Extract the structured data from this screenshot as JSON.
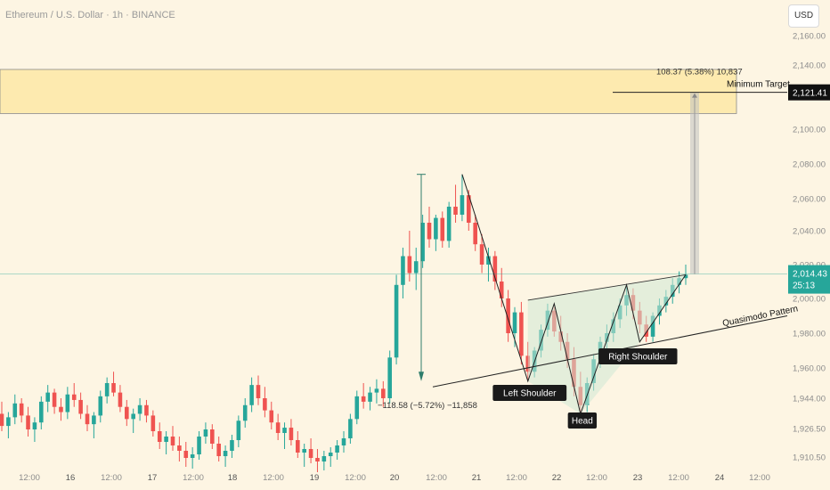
{
  "title": "Ethereum / U.S. Dollar · 1h · BINANCE",
  "currency_button": "USD",
  "colors": {
    "background": "#fdf5e3",
    "bull": "#26a69a",
    "bear": "#ef5350",
    "target_zone": "#fde8a6",
    "pattern_fill": "#cfe8d5",
    "measure": "#bfbfbf",
    "price_tag": "#26a69a"
  },
  "chart_data": {
    "type": "candlestick",
    "symbol": "ETH/USD",
    "interval": "1h",
    "exchange": "BINANCE",
    "y_ticks": [
      2160,
      2140,
      2120,
      2100,
      2080,
      2060,
      2040,
      2020,
      2000,
      1980,
      1960,
      1944,
      1926.5,
      1910.5
    ],
    "y_tick_labels": [
      "2,160.00",
      "2,140.00",
      "2,120.00",
      "2,100.00",
      "2,080.00",
      "2,060.00",
      "2,040.00",
      "2,020.00",
      "2,000.00",
      "1,980.00",
      "1,960.00",
      "1,944.00",
      "1,926.50",
      "1,910.50"
    ],
    "x_tick_labels": [
      "12:00",
      "16",
      "12:00",
      "17",
      "12:00",
      "18",
      "12:00",
      "19",
      "12:00",
      "20",
      "12:00",
      "21",
      "12:00",
      "22",
      "12:00",
      "23",
      "12:00",
      "24",
      "12:00"
    ],
    "x_day_labels": [
      "16",
      "17",
      "18",
      "19",
      "20",
      "21",
      "22",
      "23",
      "24"
    ],
    "current_price": 2014.43,
    "current_price_label": "2,014.43",
    "countdown": "25:13",
    "target_price": 2121.41,
    "target_price_label": "2,121.41",
    "target_zone": [
      2109,
      2137
    ],
    "target_text": "Minimum Target",
    "target_measure_text": "108.37 (5.38%) 10,837",
    "drop_measure_text": "−118.58 (−5.72%) −11,858",
    "pattern_name": "Quasimodo Pattern",
    "pattern_points": [
      "Left Shoulder",
      "Head",
      "Right Shoulder"
    ],
    "swing_points": [
      {
        "label": "",
        "price": 2074
      },
      {
        "label": "Left Shoulder",
        "price": 1953
      },
      {
        "label": "",
        "price": 1997
      },
      {
        "label": "Head",
        "price": 1935
      },
      {
        "label": "",
        "price": 2008
      },
      {
        "label": "Right Shoulder",
        "price": 1975
      },
      {
        "label": "",
        "price": 2014
      }
    ],
    "candles_ohlc": [
      [
        1935,
        1942,
        1925,
        1928
      ],
      [
        1928,
        1936,
        1921,
        1933
      ],
      [
        1933,
        1946,
        1929,
        1941
      ],
      [
        1941,
        1944,
        1930,
        1934
      ],
      [
        1934,
        1939,
        1922,
        1926
      ],
      [
        1926,
        1933,
        1919,
        1930
      ],
      [
        1930,
        1945,
        1926,
        1942
      ],
      [
        1942,
        1951,
        1936,
        1947
      ],
      [
        1947,
        1949,
        1935,
        1939
      ],
      [
        1939,
        1944,
        1931,
        1936
      ],
      [
        1936,
        1950,
        1932,
        1946
      ],
      [
        1946,
        1952,
        1939,
        1943
      ],
      [
        1943,
        1947,
        1932,
        1935
      ],
      [
        1935,
        1940,
        1925,
        1929
      ],
      [
        1929,
        1936,
        1921,
        1934
      ],
      [
        1934,
        1948,
        1930,
        1945
      ],
      [
        1945,
        1955,
        1941,
        1952
      ],
      [
        1952,
        1958,
        1945,
        1947
      ],
      [
        1947,
        1951,
        1936,
        1939
      ],
      [
        1939,
        1943,
        1928,
        1932
      ],
      [
        1932,
        1938,
        1924,
        1935
      ],
      [
        1935,
        1944,
        1931,
        1940
      ],
      [
        1940,
        1943,
        1930,
        1934
      ],
      [
        1934,
        1937,
        1922,
        1925
      ],
      [
        1925,
        1930,
        1915,
        1919
      ],
      [
        1919,
        1925,
        1912,
        1922
      ],
      [
        1922,
        1928,
        1914,
        1917
      ],
      [
        1917,
        1922,
        1908,
        1914
      ],
      [
        1914,
        1919,
        1905,
        1910
      ],
      [
        1910,
        1916,
        1904,
        1912
      ],
      [
        1912,
        1925,
        1909,
        1922
      ],
      [
        1922,
        1930,
        1918,
        1926
      ],
      [
        1926,
        1929,
        1915,
        1918
      ],
      [
        1918,
        1922,
        1908,
        1911
      ],
      [
        1911,
        1917,
        1905,
        1914
      ],
      [
        1914,
        1923,
        1910,
        1920
      ],
      [
        1920,
        1934,
        1916,
        1931
      ],
      [
        1931,
        1944,
        1927,
        1940
      ],
      [
        1940,
        1955,
        1936,
        1951
      ],
      [
        1951,
        1956,
        1940,
        1944
      ],
      [
        1944,
        1950,
        1933,
        1937
      ],
      [
        1937,
        1942,
        1926,
        1930
      ],
      [
        1930,
        1935,
        1920,
        1924
      ],
      [
        1924,
        1930,
        1915,
        1927
      ],
      [
        1927,
        1932,
        1917,
        1920
      ],
      [
        1920,
        1925,
        1910,
        1913
      ],
      [
        1913,
        1918,
        1905,
        1915
      ],
      [
        1915,
        1921,
        1907,
        1910
      ],
      [
        1910,
        1915,
        1902,
        1908
      ],
      [
        1908,
        1914,
        1903,
        1911
      ],
      [
        1911,
        1916,
        1905,
        1913
      ],
      [
        1913,
        1920,
        1909,
        1917
      ],
      [
        1917,
        1925,
        1913,
        1921
      ],
      [
        1921,
        1935,
        1918,
        1932
      ],
      [
        1932,
        1948,
        1929,
        1945
      ],
      [
        1945,
        1952,
        1938,
        1942
      ],
      [
        1942,
        1950,
        1937,
        1947
      ],
      [
        1947,
        1954,
        1941,
        1949
      ],
      [
        1949,
        1953,
        1939,
        1944
      ],
      [
        1944,
        1970,
        1941,
        1966
      ],
      [
        1966,
        2014,
        1962,
        2008
      ],
      [
        2008,
        2030,
        2000,
        2025
      ],
      [
        2025,
        2040,
        2010,
        2015
      ],
      [
        2015,
        2030,
        2005,
        2022
      ],
      [
        2022,
        2050,
        2018,
        2045
      ],
      [
        2045,
        2055,
        2030,
        2035
      ],
      [
        2035,
        2050,
        2028,
        2048
      ],
      [
        2048,
        2052,
        2030,
        2034
      ],
      [
        2034,
        2058,
        2030,
        2055
      ],
      [
        2055,
        2068,
        2045,
        2050
      ],
      [
        2050,
        2074,
        2046,
        2062
      ],
      [
        2062,
        2065,
        2040,
        2045
      ],
      [
        2045,
        2050,
        2028,
        2032
      ],
      [
        2032,
        2038,
        2015,
        2020
      ],
      [
        2020,
        2030,
        2010,
        2025
      ],
      [
        2025,
        2028,
        2005,
        2010
      ],
      [
        2010,
        2018,
        1995,
        2000
      ],
      [
        2000,
        2005,
        1975,
        1980
      ],
      [
        1980,
        1995,
        1972,
        1992
      ],
      [
        1992,
        1998,
        1962,
        1967
      ],
      [
        1967,
        1975,
        1953,
        1958
      ],
      [
        1958,
        1972,
        1955,
        1970
      ],
      [
        1970,
        1985,
        1966,
        1982
      ],
      [
        1982,
        1997,
        1978,
        1993
      ],
      [
        1993,
        1995,
        1978,
        1981
      ],
      [
        1981,
        1990,
        1970,
        1975
      ],
      [
        1975,
        1980,
        1960,
        1965
      ],
      [
        1965,
        1972,
        1945,
        1950
      ],
      [
        1950,
        1958,
        1935,
        1940
      ],
      [
        1940,
        1955,
        1936,
        1952
      ],
      [
        1952,
        1968,
        1948,
        1965
      ],
      [
        1965,
        1978,
        1960,
        1975
      ],
      [
        1975,
        1985,
        1968,
        1980
      ],
      [
        1980,
        1992,
        1975,
        1988
      ],
      [
        1988,
        2000,
        1983,
        1996
      ],
      [
        1996,
        2008,
        1990,
        2002
      ],
      [
        2002,
        2006,
        1988,
        1993
      ],
      [
        1993,
        1998,
        1980,
        1985
      ],
      [
        1985,
        1990,
        1975,
        1978
      ],
      [
        1978,
        1992,
        1975,
        1990
      ],
      [
        1990,
        2000,
        1985,
        1996
      ],
      [
        1996,
        2005,
        1992,
        2001
      ],
      [
        2001,
        2012,
        1997,
        2008
      ],
      [
        2008,
        2016,
        2003,
        2012
      ],
      [
        2012,
        2020,
        2008,
        2014
      ]
    ]
  },
  "y_axis_title": "",
  "x_axis_title": ""
}
